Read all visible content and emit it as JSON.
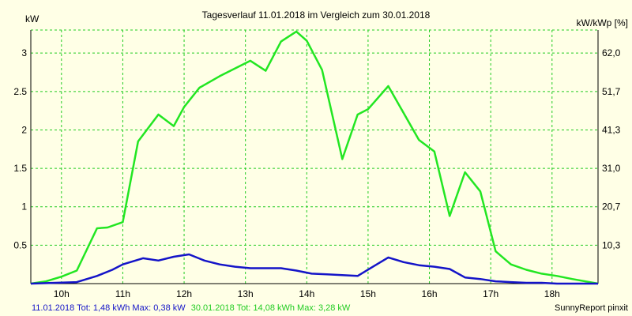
{
  "chart_data": {
    "type": "line",
    "title": "Tagesverlauf 11.01.2018 im Vergleich zum 30.01.2018",
    "ylabel_left": "kW",
    "ylabel_right": "kW/kWp [%]",
    "xlim": [
      9.5,
      18.75
    ],
    "ylim": [
      0,
      3.3
    ],
    "x_ticks": [
      10,
      11,
      12,
      13,
      14,
      15,
      16,
      17,
      18
    ],
    "x_tick_labels": [
      "10h",
      "11h",
      "12h",
      "13h",
      "14h",
      "15h",
      "16h",
      "17h",
      "18h"
    ],
    "y_ticks_left": [
      0.5,
      1,
      1.5,
      2,
      2.5,
      3
    ],
    "y_tick_labels_left": [
      "0.5",
      "1",
      "1.5",
      "2",
      "2.5",
      "3"
    ],
    "y_tick_labels_right": [
      "10,3",
      "20,7",
      "31,0",
      "41,3",
      "51,7",
      "62,0"
    ],
    "grid": true,
    "series": [
      {
        "name": "30.01.2018",
        "color": "#22e622",
        "x": [
          9.5,
          9.75,
          10.0,
          10.25,
          10.58,
          10.75,
          11.0,
          11.25,
          11.58,
          11.83,
          12.0,
          12.25,
          12.58,
          12.83,
          13.08,
          13.33,
          13.58,
          13.83,
          14.0,
          14.25,
          14.58,
          14.83,
          15.0,
          15.33,
          15.83,
          16.08,
          16.33,
          16.58,
          16.83,
          17.08,
          17.33,
          17.58,
          17.83,
          18.08,
          18.33,
          18.75
        ],
        "y": [
          0.0,
          0.03,
          0.09,
          0.17,
          0.72,
          0.73,
          0.8,
          1.85,
          2.2,
          2.05,
          2.3,
          2.55,
          2.7,
          2.8,
          2.9,
          2.77,
          3.15,
          3.28,
          3.16,
          2.78,
          1.62,
          2.2,
          2.27,
          2.57,
          1.87,
          1.72,
          0.88,
          1.45,
          1.2,
          0.42,
          0.25,
          0.18,
          0.13,
          0.1,
          0.06,
          0.0
        ]
      },
      {
        "name": "11.01.2018",
        "color": "#1414c8",
        "x": [
          9.5,
          10.25,
          10.58,
          10.83,
          11.0,
          11.33,
          11.58,
          11.83,
          12.08,
          12.33,
          12.58,
          12.83,
          13.08,
          13.33,
          13.58,
          13.83,
          14.08,
          14.33,
          14.58,
          14.83,
          15.08,
          15.33,
          15.58,
          15.83,
          16.08,
          16.33,
          16.58,
          16.83,
          17.08,
          17.33,
          17.58,
          17.83,
          18.08,
          18.33,
          18.75
        ],
        "y": [
          0.0,
          0.02,
          0.1,
          0.18,
          0.25,
          0.33,
          0.3,
          0.35,
          0.38,
          0.3,
          0.25,
          0.22,
          0.2,
          0.2,
          0.2,
          0.17,
          0.13,
          0.12,
          0.11,
          0.1,
          0.22,
          0.34,
          0.28,
          0.24,
          0.22,
          0.19,
          0.08,
          0.06,
          0.03,
          0.02,
          0.01,
          0.01,
          0.0,
          0.0,
          0.0
        ]
      }
    ],
    "footer": {
      "series1_text": "11.01.2018 Tot: 1,48 kWh Max: 0,38 kW",
      "series2_text": "30.01.2018 Tot: 14,08 kWh Max: 3,28 kW",
      "credit": "SunnyReport pinxit"
    },
    "colors": {
      "background": "#ffffe6",
      "grid": "#22cc22",
      "axis": "#000000"
    }
  }
}
